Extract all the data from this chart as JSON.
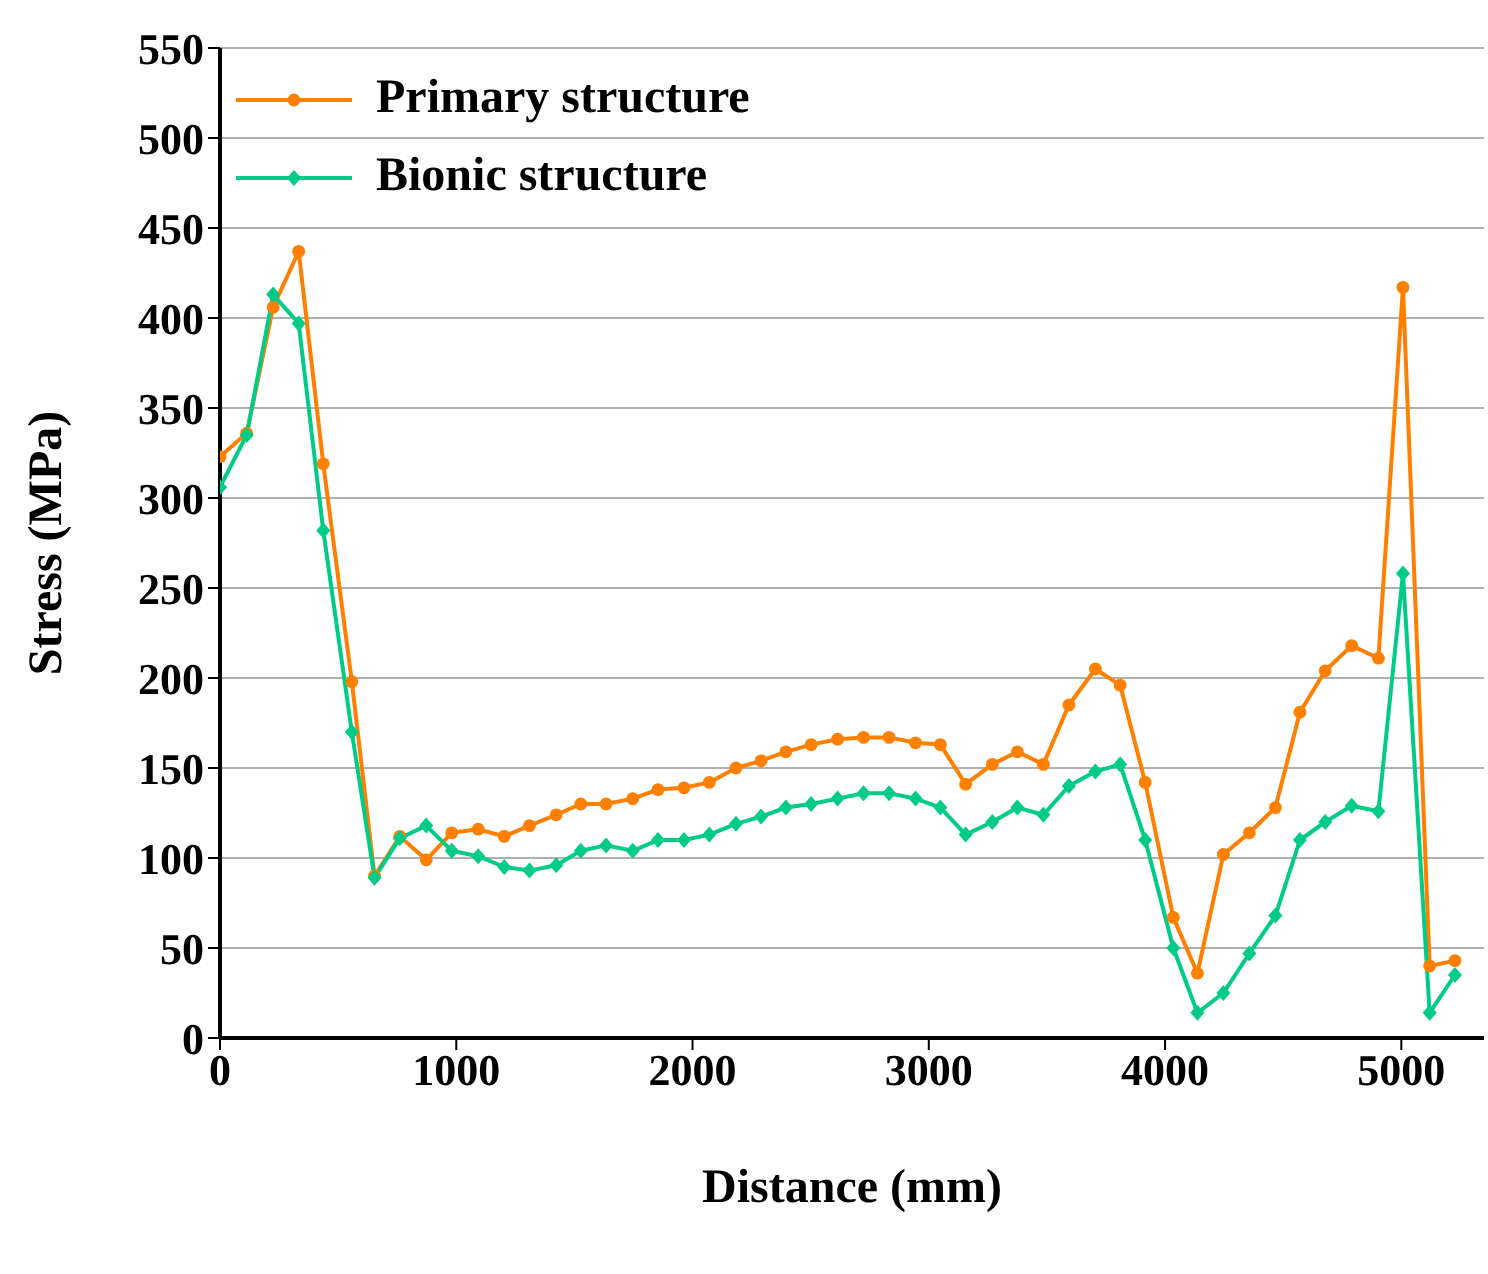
{
  "chart_data": {
    "type": "line",
    "xlabel": "Distance (mm)",
    "ylabel": "Stress (MPa)",
    "x": [
      0,
      113,
      225,
      333,
      437,
      558,
      654,
      761,
      873,
      981,
      1093,
      1203,
      1310,
      1423,
      1527,
      1634,
      1747,
      1854,
      1964,
      2071,
      2184,
      2290,
      2395,
      2502,
      2614,
      2724,
      2832,
      2944,
      3049,
      3156,
      3269,
      3375,
      3485,
      3593,
      3705,
      3810,
      3916,
      4035,
      4137,
      4247,
      4357,
      4467,
      4571,
      4678,
      4790,
      4903,
      5007,
      5120,
      5227
    ],
    "series": [
      {
        "name": "Primary structure",
        "color": "#ff8000",
        "marker": "circle",
        "values": [
          323,
          336,
          406,
          437,
          319,
          198,
          90,
          112,
          99,
          114,
          116,
          112,
          118,
          124,
          130,
          130,
          133,
          138,
          139,
          142,
          150,
          154,
          159,
          163,
          166,
          167,
          167,
          164,
          163,
          141,
          152,
          159,
          152,
          185,
          205,
          196,
          142,
          67,
          36,
          102,
          114,
          128,
          181,
          204,
          218,
          211,
          417,
          40,
          43
        ]
      },
      {
        "name": "Bionic structure",
        "color": "#00cc88",
        "marker": "diamond",
        "values": [
          306,
          335,
          413,
          397,
          282,
          170,
          89,
          111,
          118,
          104,
          101,
          95,
          93,
          96,
          104,
          107,
          104,
          110,
          110,
          113,
          119,
          123,
          128,
          130,
          133,
          136,
          136,
          133,
          128,
          113,
          120,
          128,
          124,
          140,
          148,
          152,
          110,
          50,
          14,
          25,
          47,
          68,
          110,
          120,
          129,
          126,
          258,
          14,
          35
        ]
      }
    ],
    "xlim": [
      0,
      5350
    ],
    "xticks": [
      0,
      1000,
      2000,
      3000,
      4000,
      5000
    ],
    "ylim": [
      0,
      550
    ],
    "yticks": [
      0,
      50,
      100,
      150,
      200,
      250,
      300,
      350,
      400,
      450,
      500,
      550
    ],
    "grid": "y",
    "legend": "top left",
    "line_style": "solid"
  }
}
